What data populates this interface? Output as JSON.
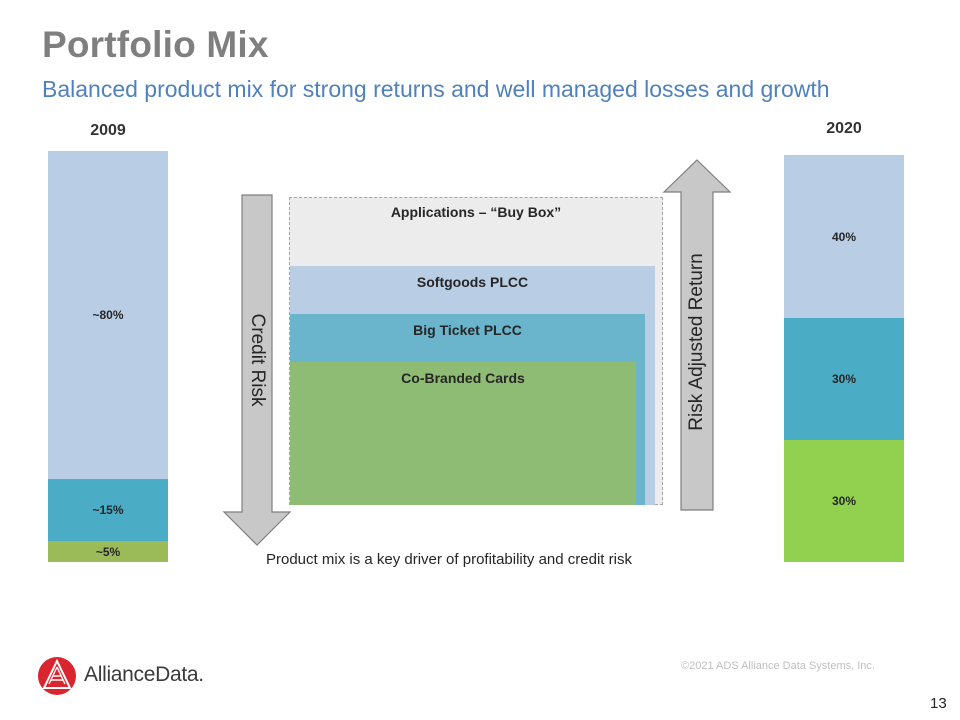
{
  "header": {
    "title": "Portfolio Mix",
    "subtitle": "Balanced product mix for strong returns and well managed losses and growth"
  },
  "chart_data": [
    {
      "type": "bar",
      "categories": [
        "2009"
      ],
      "series": [
        {
          "values": [
            5
          ],
          "label": "~5%",
          "color": "#9bbb59"
        },
        {
          "values": [
            15
          ],
          "label": "~15%",
          "color": "#4bacc6"
        },
        {
          "values": [
            80
          ],
          "label": "~80%",
          "color": "#b9cde5"
        }
      ],
      "ylim": [
        0,
        100
      ]
    },
    {
      "type": "bar",
      "categories": [
        "2020"
      ],
      "series": [
        {
          "values": [
            30
          ],
          "label": "30%",
          "color": "#92d050"
        },
        {
          "values": [
            30
          ],
          "label": "30%",
          "color": "#4bacc6"
        },
        {
          "values": [
            40
          ],
          "label": "40%",
          "color": "#b9cde5"
        }
      ],
      "ylim": [
        0,
        100
      ]
    }
  ],
  "diagram": {
    "applications_label": "Applications – “Buy Box”",
    "softgoods_label": "Softgoods PLCC",
    "big_ticket_label": "Big Ticket PLCC",
    "co_branded_label": "Co-Branded Cards",
    "credit_risk_label": "Credit Risk",
    "risk_adjusted_label": "Risk Adjusted Return",
    "colors": {
      "applications": "#ececec",
      "softgoods": "#b9cde5",
      "big_ticket": "#6ab4cc",
      "co_branded": "#8fbc75",
      "arrow_fill": "#c8c8c8"
    }
  },
  "caption": "Product mix is a key driver of profitability and credit risk",
  "footer": {
    "logo_text": "AllianceData.",
    "copyright": "©2021 ADS Alliance Data Systems, Inc.",
    "page_number": "13"
  }
}
